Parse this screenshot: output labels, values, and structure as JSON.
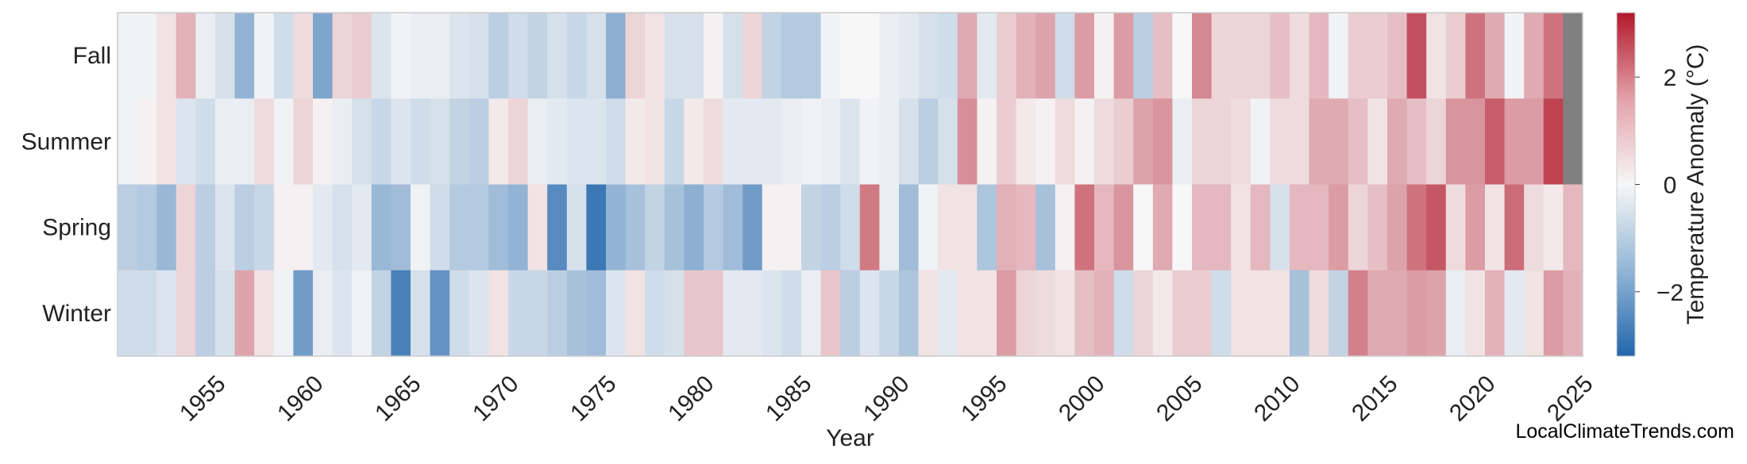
{
  "chart_data": {
    "type": "heatmap",
    "title": "",
    "xlabel": "Year",
    "ylabel": "",
    "x_start": 1950,
    "x_end": 2025,
    "x_tick_labels": [
      "1955",
      "1960",
      "1965",
      "1970",
      "1975",
      "1980",
      "1985",
      "1990",
      "1995",
      "2000",
      "2005",
      "2010",
      "2015",
      "2020",
      "2025"
    ],
    "rows": [
      "Fall",
      "Summer",
      "Spring",
      "Winter"
    ],
    "colorbar": {
      "label": "Temperature Anomaly (°C)",
      "range": [
        -3.2,
        3.2
      ],
      "ticks": [
        2,
        0,
        -2
      ],
      "tick_labels": [
        "2",
        "0",
        "−2"
      ],
      "colors": {
        "low": "#2166ac",
        "mid": "#f7f7f7",
        "high": "#b2182b"
      }
    },
    "missing_color": "#808080",
    "values": {
      "Fall": [
        -0.1,
        -0.1,
        0.3,
        1.0,
        -0.2,
        -0.5,
        -1.5,
        -0.1,
        -0.6,
        0.4,
        -1.8,
        0.5,
        0.6,
        -0.4,
        -0.1,
        -0.2,
        -0.2,
        -0.4,
        -0.5,
        -0.9,
        -0.6,
        -0.8,
        -0.5,
        -0.7,
        -0.5,
        -1.6,
        0.5,
        0.3,
        -0.5,
        -0.5,
        0.1,
        -0.5,
        0.5,
        -0.8,
        -1.0,
        -1.0,
        -0.1,
        0.0,
        0.0,
        -0.2,
        -0.3,
        -0.5,
        -0.6,
        1.1,
        -0.3,
        0.6,
        1.0,
        1.2,
        -0.6,
        1.3,
        0.1,
        1.3,
        -0.9,
        0.8,
        0.0,
        1.6,
        0.5,
        0.5,
        0.5,
        0.8,
        0.4,
        0.9,
        -0.1,
        0.6,
        0.6,
        0.8,
        2.4,
        0.3,
        0.6,
        1.9,
        1.1,
        -0.1,
        1.1,
        1.9,
        null
      ],
      "Summer": [
        -0.1,
        0.1,
        0.3,
        -0.4,
        -0.6,
        -0.2,
        -0.2,
        0.4,
        -0.1,
        0.5,
        0.1,
        -0.2,
        -0.5,
        -0.7,
        -0.4,
        -0.6,
        -0.5,
        -0.8,
        -0.9,
        0.2,
        0.5,
        -0.2,
        -0.3,
        -0.4,
        -0.4,
        -0.6,
        0.2,
        0.3,
        -0.7,
        0.2,
        0.4,
        -0.3,
        -0.3,
        -0.3,
        -0.2,
        -0.1,
        -0.2,
        -0.4,
        -0.1,
        -0.2,
        -0.5,
        -0.9,
        -0.5,
        1.5,
        0.1,
        0.6,
        0.2,
        0.1,
        0.4,
        0.1,
        0.4,
        0.6,
        1.2,
        1.4,
        -0.2,
        0.5,
        0.5,
        0.4,
        -0.1,
        0.4,
        0.4,
        1.1,
        1.1,
        0.8,
        0.3,
        1.1,
        0.8,
        0.5,
        1.4,
        1.4,
        2.2,
        1.3,
        1.3,
        2.6,
        null
      ],
      "Spring": [
        -0.9,
        -1.0,
        -1.4,
        0.5,
        -0.9,
        -0.4,
        -0.9,
        -0.7,
        0.1,
        0.1,
        -0.3,
        -0.5,
        -0.3,
        -1.4,
        -1.3,
        -0.1,
        -0.6,
        -1.0,
        -1.0,
        -1.3,
        -1.5,
        0.3,
        -2.4,
        -0.5,
        -2.8,
        -1.5,
        -1.2,
        -0.8,
        -1.2,
        -1.6,
        -1.0,
        -1.3,
        -2.0,
        0.1,
        0.1,
        -0.8,
        -0.9,
        -0.6,
        1.8,
        -0.2,
        -1.3,
        -0.1,
        0.3,
        0.3,
        -1.1,
        1.0,
        0.9,
        -1.2,
        0.1,
        1.9,
        0.9,
        1.4,
        0.0,
        1.1,
        0.0,
        0.9,
        0.9,
        0.3,
        0.9,
        -0.5,
        0.9,
        0.9,
        1.3,
        0.5,
        0.8,
        1.2,
        1.9,
        2.3,
        0.4,
        1.3,
        0.3,
        2.0,
        0.4,
        0.2,
        0.9
      ],
      "Winter": [
        -0.6,
        -0.6,
        -0.4,
        0.5,
        -0.9,
        -0.5,
        1.2,
        0.3,
        -0.1,
        -2.0,
        -0.2,
        -0.4,
        -0.1,
        -0.8,
        -2.6,
        -0.5,
        -2.2,
        -0.6,
        -0.4,
        0.3,
        -0.7,
        -0.7,
        -0.9,
        -1.2,
        -1.3,
        -0.4,
        0.3,
        -0.6,
        -0.5,
        0.7,
        0.7,
        -0.3,
        -0.3,
        -0.4,
        -0.6,
        -0.2,
        0.7,
        -0.9,
        -0.4,
        -0.7,
        -1.1,
        0.3,
        -0.3,
        0.3,
        0.3,
        1.3,
        0.5,
        0.4,
        0.3,
        0.8,
        1.0,
        -0.6,
        0.5,
        0.2,
        0.6,
        0.6,
        -0.6,
        0.3,
        0.3,
        0.3,
        -1.2,
        0.4,
        -0.8,
        1.7,
        1.1,
        1.1,
        1.3,
        1.2,
        -0.2,
        0.3,
        1.0,
        -0.3,
        0.3,
        1.3,
        1.0
      ]
    }
  },
  "footer": {
    "watermark": "LocalClimateTrends.com"
  }
}
